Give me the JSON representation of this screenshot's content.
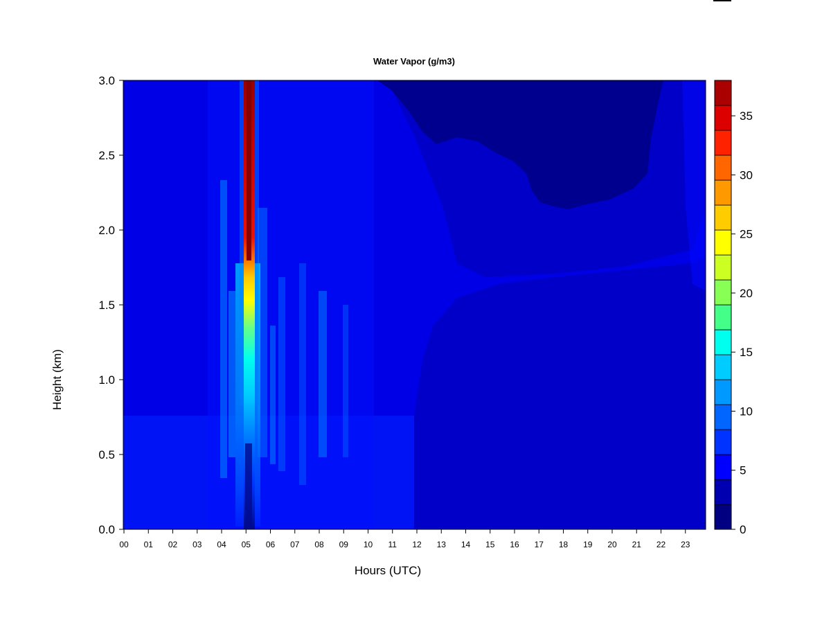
{
  "chart_data": {
    "type": "heatmap",
    "title": "Water Vapor (g/m3)",
    "xlabel": "Hours (UTC)",
    "ylabel": "Height (km)",
    "x_ticks": [
      "00",
      "01",
      "02",
      "03",
      "04",
      "05",
      "06",
      "07",
      "08",
      "09",
      "10",
      "11",
      "12",
      "13",
      "14",
      "15",
      "16",
      "17",
      "18",
      "19",
      "20",
      "21",
      "22",
      "23"
    ],
    "y_ticks": [
      "0.0",
      "0.5",
      "1.0",
      "1.5",
      "2.0",
      "2.5",
      "3.0"
    ],
    "xlim": [
      0,
      24
    ],
    "ylim": [
      0,
      3.0
    ],
    "colorbar": {
      "levels": [
        0,
        2.5,
        5,
        7.5,
        10,
        12.5,
        15,
        17.5,
        20,
        22.5,
        25,
        27.5,
        30,
        32.5,
        35,
        37.5
      ],
      "ticks": [
        "0",
        "5",
        "10",
        "15",
        "20",
        "25",
        "30",
        "35"
      ],
      "colors": [
        "#000080",
        "#0000b4",
        "#0000ff",
        "#0033ff",
        "#0066ff",
        "#0099ff",
        "#00ccff",
        "#00ffee",
        "#33ff99",
        "#77ff66",
        "#bbff33",
        "#ffff00",
        "#ffcc00",
        "#ff9900",
        "#ff6600",
        "#ff3300",
        "#ff0000",
        "#cc0000",
        "#800000"
      ]
    },
    "features": [
      {
        "name": "moist column",
        "x_range": [
          5.0,
          5.2
        ],
        "height_range": [
          0,
          3.0
        ],
        "peak_value": 37
      },
      {
        "name": "dry region",
        "x_range": [
          12,
          22
        ],
        "height_range": [
          2.1,
          3.0
        ],
        "value_range": [
          0,
          2.5
        ]
      },
      {
        "name": "background",
        "x_range": [
          0,
          24
        ],
        "height_range": [
          0,
          3.0
        ],
        "value_range": [
          2.5,
          7.5
        ]
      }
    ]
  }
}
